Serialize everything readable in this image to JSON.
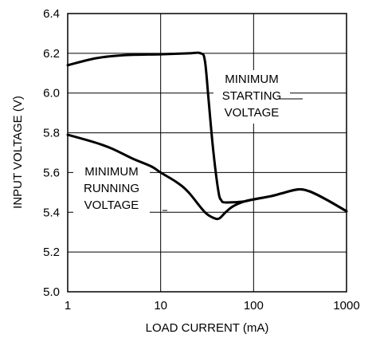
{
  "chart_data": {
    "type": "line",
    "xlabel": "LOAD CURRENT (mA)",
    "ylabel": "INPUT VOLTAGE (V)",
    "xscale": "log",
    "xlim": [
      1,
      1000
    ],
    "ylim": [
      5.0,
      6.4
    ],
    "x_ticks": [
      "1",
      "10",
      "100",
      "1000"
    ],
    "y_ticks": [
      "5.0",
      "5.2",
      "5.4",
      "5.6",
      "5.8",
      "6.0",
      "6.2",
      "6.4"
    ],
    "grid": true,
    "series": [
      {
        "name": "MINIMUM STARTING VOLTAGE",
        "x": [
          1,
          2,
          4,
          10,
          20,
          27,
          30,
          33,
          37,
          42,
          45,
          48,
          60,
          80,
          100,
          150,
          200,
          300,
          400,
          600,
          1000
        ],
        "y": [
          6.14,
          6.175,
          6.19,
          6.195,
          6.2,
          6.2,
          6.16,
          5.95,
          5.7,
          5.5,
          5.46,
          5.45,
          5.45,
          5.455,
          5.465,
          5.48,
          5.495,
          5.515,
          5.505,
          5.465,
          5.405
        ]
      },
      {
        "name": "MINIMUM RUNNING VOLTAGE",
        "x": [
          1,
          2,
          3,
          5,
          8,
          10,
          15,
          20,
          30,
          38,
          43,
          50,
          60,
          80,
          100,
          150,
          200,
          300,
          400,
          600,
          1000
        ],
        "y": [
          5.79,
          5.75,
          5.72,
          5.67,
          5.63,
          5.6,
          5.55,
          5.5,
          5.4,
          5.37,
          5.37,
          5.4,
          5.43,
          5.455,
          5.465,
          5.48,
          5.495,
          5.515,
          5.505,
          5.465,
          5.405
        ]
      }
    ],
    "annotations": [
      {
        "lines": [
          "MINIMUM",
          "STARTING",
          "VOLTAGE"
        ],
        "target": "MINIMUM STARTING VOLTAGE"
      },
      {
        "lines": [
          "MINIMUM",
          "RUNNING",
          "VOLTAGE"
        ],
        "target": "MINIMUM RUNNING VOLTAGE"
      }
    ]
  }
}
